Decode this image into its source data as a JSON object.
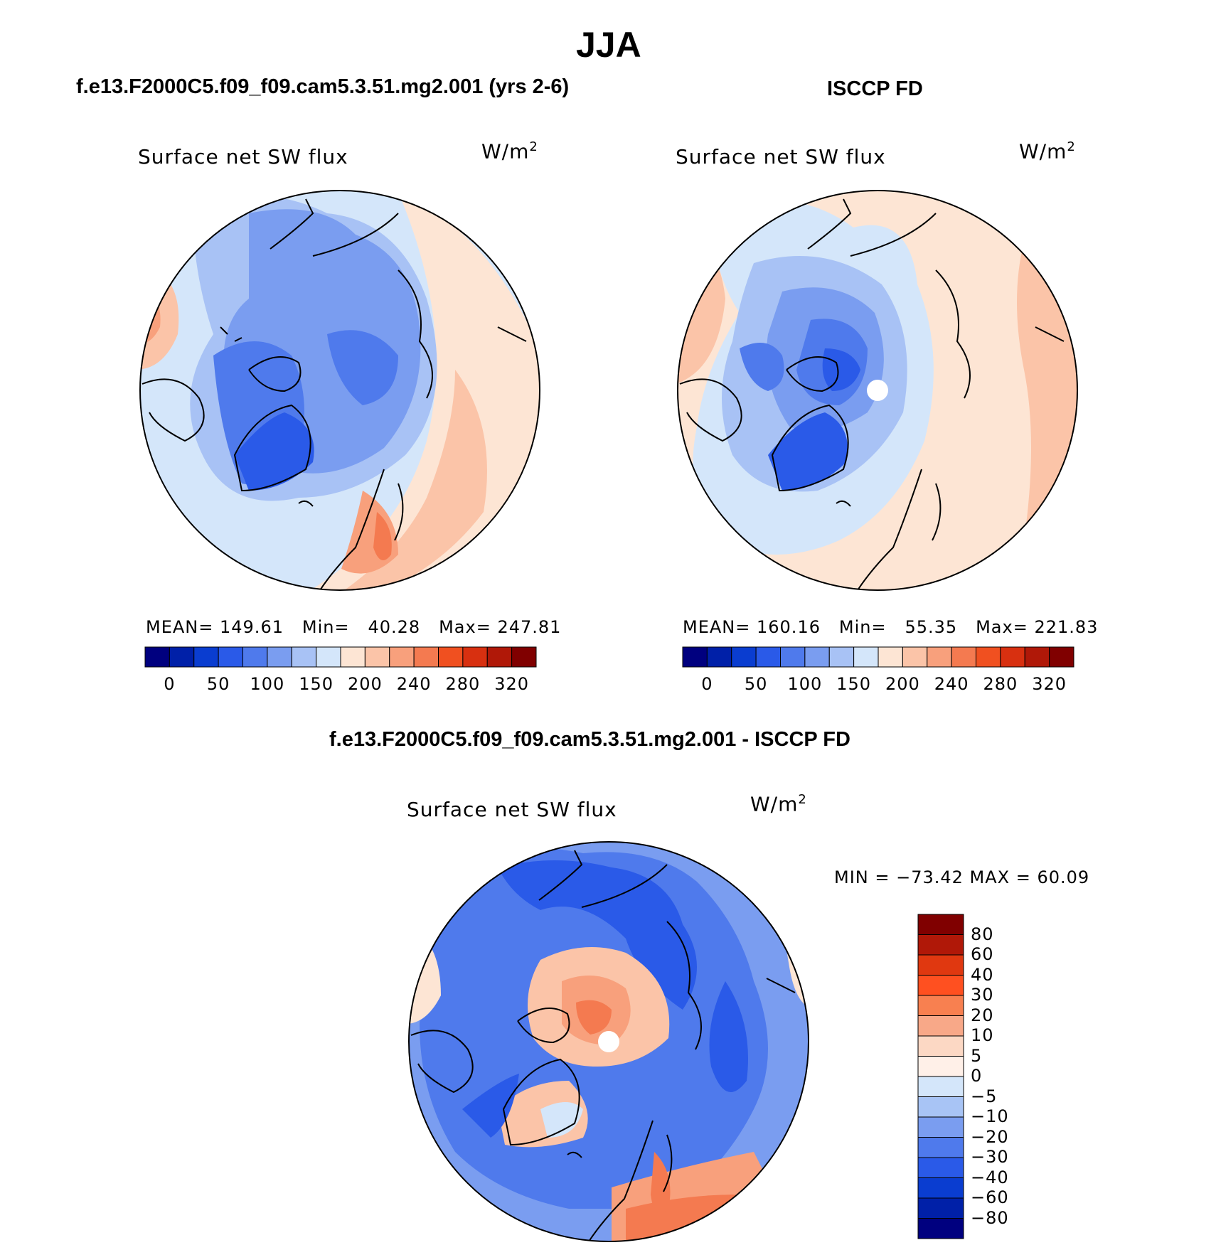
{
  "figure": {
    "title": "JJA",
    "units": "W/m",
    "units_sup": "2",
    "var_label": "Surface net SW flux"
  },
  "chart_data": [
    {
      "type": "heatmap",
      "panel": "model",
      "title": "f.e13.F2000C5.f09_f09.cam5.3.51.mg2.001 (yrs 2-6)",
      "subtitle": "Surface net SW flux",
      "units": "W/m2",
      "stats": {
        "mean_label": "MEAN=",
        "mean": "149.61",
        "min_label": "Min=",
        "min": "40.28",
        "max_label": "Max=",
        "max": "247.81"
      },
      "colorbar_ticks": [
        "0",
        "50",
        "100",
        "150",
        "200",
        "240",
        "280",
        "320"
      ]
    },
    {
      "type": "heatmap",
      "panel": "obs",
      "title": "ISCCP FD",
      "subtitle": "Surface net SW flux",
      "units": "W/m2",
      "stats": {
        "mean_label": "MEAN=",
        "mean": "160.16",
        "min_label": "Min=",
        "min": "55.35",
        "max_label": "Max=",
        "max": "221.83"
      },
      "colorbar_ticks": [
        "0",
        "50",
        "100",
        "150",
        "200",
        "240",
        "280",
        "320"
      ]
    },
    {
      "type": "heatmap",
      "panel": "difference",
      "title": "f.e13.F2000C5.f09_f09.cam5.3.51.mg2.001 - ISCCP FD",
      "subtitle": "Surface net SW flux",
      "units": "W/m2",
      "stats_text": "MIN = −73.42 MAX =  60.09",
      "colorbar_ticks": [
        "80",
        "60",
        "40",
        "30",
        "20",
        "10",
        "5",
        "0",
        "−5",
        "−10",
        "−20",
        "−30",
        "−40",
        "−60",
        "−80"
      ]
    }
  ],
  "colors": {
    "seq": [
      "#00007f",
      "#0020a8",
      "#0a3dd0",
      "#2a5ae8",
      "#4f7aec",
      "#7a9df0",
      "#a8c2f5",
      "#d4e6fa",
      "#fde5d4",
      "#fbc4a8",
      "#f8a07c",
      "#f47a50",
      "#f05020",
      "#d83010",
      "#b01808",
      "#800000"
    ],
    "diff": [
      "#800000",
      "#b01808",
      "#e03810",
      "#ff5020",
      "#f88050",
      "#f8a888",
      "#fcd8c4",
      "#fff0e8",
      "#d4e6fa",
      "#a8c4f5",
      "#7a9df0",
      "#4f7aec",
      "#2a5ae8",
      "#0a3dd0",
      "#0020a8",
      "#00007f"
    ]
  }
}
